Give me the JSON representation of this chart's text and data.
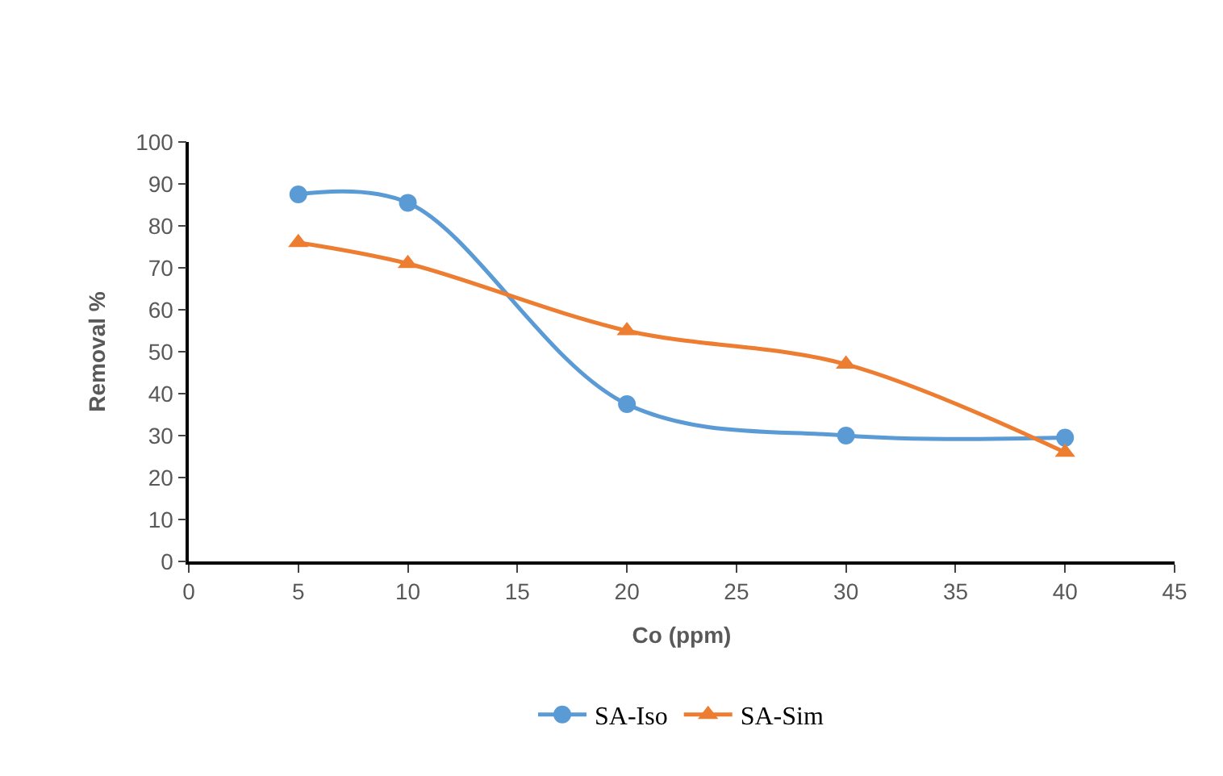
{
  "chart_data": {
    "type": "line",
    "xlabel": "Co (ppm)",
    "ylabel": "Removal %",
    "x": [
      5,
      10,
      20,
      30,
      40
    ],
    "series": [
      {
        "name": "SA-Iso",
        "color": "#5b9bd5",
        "marker": "circle",
        "values": [
          87.5,
          85.5,
          37.5,
          30,
          29.5
        ]
      },
      {
        "name": "SA-Sim",
        "color": "#ed7d31",
        "marker": "triangle",
        "values": [
          76,
          71,
          55,
          47,
          26
        ]
      }
    ],
    "xlim": [
      0,
      45
    ],
    "xticks": [
      0,
      5,
      10,
      15,
      20,
      25,
      30,
      35,
      40,
      45
    ],
    "ylim": [
      0,
      100
    ],
    "yticks": [
      0,
      10,
      20,
      30,
      40,
      50,
      60,
      70,
      80,
      90,
      100
    ],
    "legend": "bottom",
    "line_style": "solid"
  }
}
